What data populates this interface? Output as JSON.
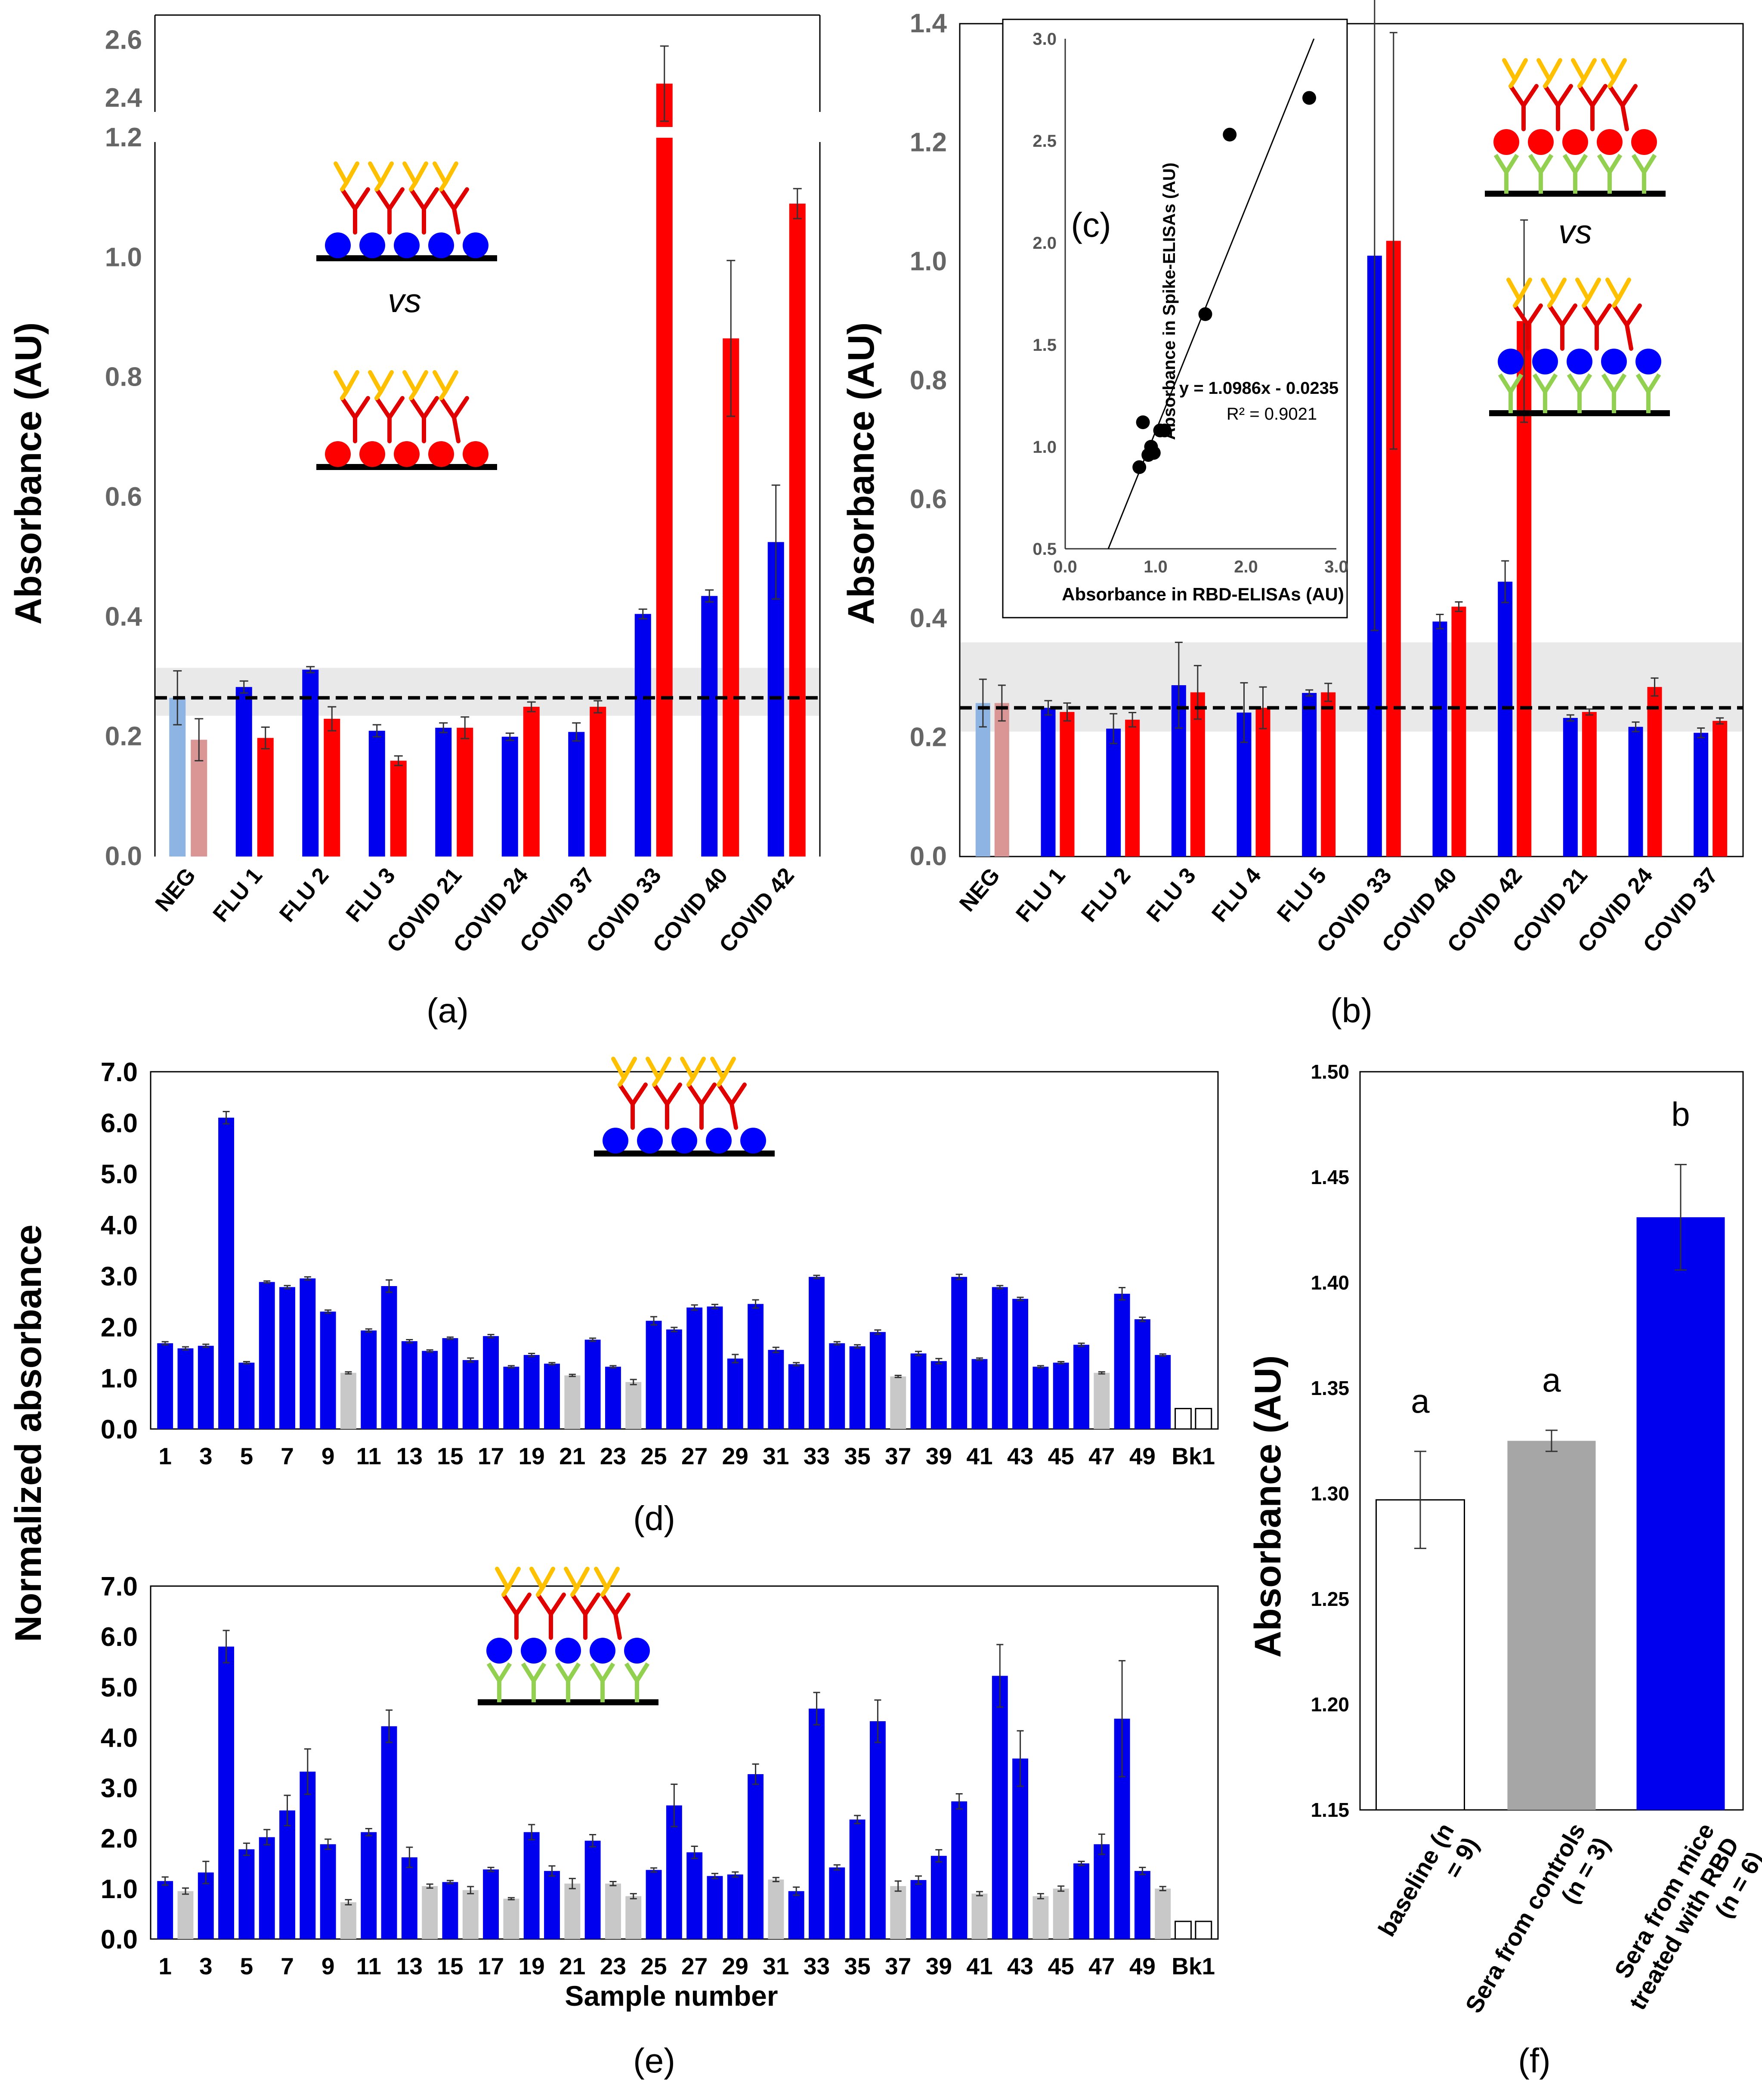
{
  "colors": {
    "blue": "#0000ee",
    "red": "#ff0000",
    "light_blue": "#8eb4e3",
    "light_red": "#d99694",
    "gray": "#c8c8c8",
    "dark_gray": "#a6a6a6",
    "antigen_blue": "#0000ff",
    "antigen_red": "#ff0000",
    "ab_red": "#e00000",
    "ab_yellow": "#ffc000",
    "ab_green": "#92d050"
  },
  "chart_data": [
    {
      "id": "a",
      "type": "bar",
      "panel_label": "(a)",
      "ylabel": "Absorbance (AU)",
      "vs_label": "vs",
      "categories": [
        "NEG",
        "FLU 1",
        "FLU 2",
        "FLU 3",
        "COVID 21",
        "COVID 24",
        "COVID 37",
        "COVID 33",
        "COVID 40",
        "COVID 42"
      ],
      "series": [
        {
          "name": "RBD",
          "values": [
            0.265,
            0.283,
            0.312,
            0.21,
            0.215,
            0.2,
            0.208,
            0.405,
            0.435,
            0.525
          ],
          "errors": [
            0.045,
            0.01,
            0.005,
            0.01,
            0.008,
            0.006,
            0.015,
            0.008,
            0.01,
            0.095
          ]
        },
        {
          "name": "Spike",
          "values": [
            0.195,
            0.198,
            0.23,
            0.16,
            0.215,
            0.25,
            0.25,
            2.45,
            0.865,
            1.09
          ],
          "errors": [
            0.035,
            0.018,
            0.02,
            0.008,
            0.018,
            0.008,
            0.01,
            0.13,
            0.13,
            0.025
          ]
        }
      ],
      "yticks_lower": [
        "0.0",
        "0.2",
        "0.4",
        "0.6",
        "0.8",
        "1.0",
        "1.2"
      ],
      "yticks_upper": [
        "2.4",
        "2.6"
      ],
      "ylim_lower": [
        0,
        1.2
      ],
      "ylim_upper": [
        2.3,
        2.65
      ],
      "cutoff": 0.265,
      "band": [
        0.235,
        0.315
      ]
    },
    {
      "id": "b",
      "type": "bar",
      "panel_label": "(b)",
      "ylabel": "Absorbance (AU)",
      "vs_label": "vs",
      "categories": [
        "NEG",
        "FLU 1",
        "FLU 2",
        "FLU 3",
        "FLU 4",
        "FLU 5",
        "COVID 33",
        "COVID 40",
        "COVID 42",
        "COVID 21",
        "COVID 24",
        "COVID 37"
      ],
      "series": [
        {
          "name": "RBD",
          "values": [
            0.258,
            0.25,
            0.215,
            0.288,
            0.242,
            0.275,
            1.01,
            0.395,
            0.462,
            0.233,
            0.218,
            0.208
          ],
          "errors": [
            0.04,
            0.012,
            0.025,
            0.072,
            0.05,
            0.005,
            0.63,
            0.012,
            0.035,
            0.005,
            0.008,
            0.008
          ]
        },
        {
          "name": "Spike",
          "values": [
            0.258,
            0.243,
            0.23,
            0.276,
            0.25,
            0.276,
            1.035,
            0.42,
            0.9,
            0.243,
            0.285,
            0.228
          ],
          "errors": [
            0.03,
            0.015,
            0.012,
            0.045,
            0.035,
            0.015,
            0.35,
            0.008,
            0.17,
            0.005,
            0.015,
            0.005
          ]
        }
      ],
      "yticks": [
        "0.0",
        "0.2",
        "0.4",
        "0.6",
        "0.8",
        "1.0",
        "1.2",
        "1.4"
      ],
      "ylim": [
        0,
        1.4
      ],
      "cutoff": 0.25,
      "band": [
        0.21,
        0.36
      ]
    },
    {
      "id": "c",
      "type": "scatter",
      "panel_label": "(c)",
      "xlabel": "Absorbance in RBD-ELISAs (AU)",
      "ylabel": "Absorbance in Spike-ELISAs (AU)",
      "equation": "y = 1.0986x - 0.0235",
      "r2": "R² = 0.9021",
      "xticks": [
        "0.0",
        "1.0",
        "2.0",
        "3.0"
      ],
      "yticks": [
        "0.5",
        "1.0",
        "1.5",
        "2.0",
        "2.5",
        "3.0"
      ],
      "xlim": [
        0,
        3
      ],
      "ylim": [
        0.5,
        3
      ],
      "x": [
        0.82,
        0.86,
        0.92,
        0.95,
        0.98,
        1.05,
        1.1,
        1.55,
        1.82,
        2.7
      ],
      "y": [
        0.9,
        1.12,
        0.96,
        1.0,
        0.97,
        1.08,
        1.08,
        1.65,
        2.53,
        2.71
      ]
    },
    {
      "id": "d",
      "type": "bar",
      "panel_label": "(d)",
      "ylabel": "Normalized absorbance",
      "yticks": [
        "0.0",
        "1.0",
        "2.0",
        "3.0",
        "4.0",
        "5.0",
        "6.0",
        "7.0"
      ],
      "ylim": [
        0,
        7
      ],
      "xticks": [
        "1",
        "3",
        "5",
        "7",
        "9",
        "11",
        "13",
        "15",
        "17",
        "19",
        "21",
        "23",
        "25",
        "27",
        "29",
        "31",
        "33",
        "35",
        "37",
        "39",
        "41",
        "43",
        "45",
        "47",
        "49",
        "Bk1"
      ],
      "values": [
        1.68,
        1.58,
        1.63,
        6.1,
        1.3,
        2.88,
        2.78,
        2.95,
        2.3,
        1.1,
        1.93,
        2.8,
        1.72,
        1.53,
        1.78,
        1.35,
        1.82,
        1.22,
        1.45,
        1.28,
        1.05,
        1.75,
        1.22,
        0.92,
        2.12,
        1.95,
        2.38,
        2.4,
        1.38,
        2.45,
        1.55,
        1.27,
        2.98,
        1.68,
        1.62,
        1.9,
        1.03,
        1.48,
        1.33,
        2.98,
        1.37,
        2.78,
        2.55,
        1.22,
        1.3,
        1.65,
        1.1,
        2.65,
        2.15,
        1.45
      ],
      "errors": [
        0.03,
        0.03,
        0.03,
        0.12,
        0.02,
        0.02,
        0.03,
        0.03,
        0.03,
        0.02,
        0.03,
        0.12,
        0.03,
        0.02,
        0.02,
        0.04,
        0.03,
        0.02,
        0.03,
        0.02,
        0.02,
        0.03,
        0.02,
        0.05,
        0.08,
        0.04,
        0.05,
        0.04,
        0.08,
        0.08,
        0.05,
        0.03,
        0.03,
        0.03,
        0.03,
        0.04,
        0.02,
        0.04,
        0.05,
        0.05,
        0.02,
        0.03,
        0.03,
        0.02,
        0.02,
        0.03,
        0.02,
        0.12,
        0.04,
        0.02
      ],
      "gray_indices": [
        9,
        20,
        23,
        36,
        46
      ],
      "blanks": [
        0.4,
        0.4
      ]
    },
    {
      "id": "e",
      "type": "bar",
      "panel_label": "(e)",
      "xlabel": "Sample number",
      "yticks": [
        "0.0",
        "1.0",
        "2.0",
        "3.0",
        "4.0",
        "5.0",
        "6.0",
        "7.0"
      ],
      "ylim": [
        0,
        7
      ],
      "xticks": [
        "1",
        "3",
        "5",
        "7",
        "9",
        "11",
        "13",
        "15",
        "17",
        "19",
        "21",
        "23",
        "25",
        "27",
        "29",
        "31",
        "33",
        "35",
        "37",
        "39",
        "41",
        "43",
        "45",
        "47",
        "49",
        "Bk1"
      ],
      "values": [
        1.15,
        0.95,
        1.32,
        5.8,
        1.78,
        2.02,
        2.55,
        3.32,
        1.88,
        0.73,
        2.12,
        4.22,
        1.62,
        1.05,
        1.13,
        0.97,
        1.38,
        0.8,
        2.12,
        1.35,
        1.1,
        1.95,
        1.1,
        0.85,
        1.37,
        2.65,
        1.72,
        1.25,
        1.28,
        3.27,
        1.18,
        0.95,
        4.57,
        1.42,
        2.37,
        4.32,
        1.05,
        1.17,
        1.65,
        2.73,
        0.9,
        5.22,
        3.58,
        0.85,
        1.0,
        1.5,
        1.88,
        4.37,
        1.35,
        1.0
      ],
      "errors": [
        0.08,
        0.06,
        0.22,
        0.32,
        0.12,
        0.15,
        0.3,
        0.45,
        0.1,
        0.05,
        0.07,
        0.32,
        0.2,
        0.04,
        0.03,
        0.07,
        0.04,
        0.02,
        0.15,
        0.1,
        0.1,
        0.12,
        0.04,
        0.05,
        0.04,
        0.42,
        0.12,
        0.05,
        0.05,
        0.2,
        0.04,
        0.08,
        0.32,
        0.05,
        0.08,
        0.42,
        0.1,
        0.08,
        0.12,
        0.15,
        0.04,
        0.62,
        0.55,
        0.05,
        0.05,
        0.04,
        0.2,
        1.15,
        0.07,
        0.04
      ],
      "gray_indices": [
        1,
        9,
        13,
        15,
        17,
        20,
        22,
        23,
        30,
        36,
        40,
        43,
        44,
        49
      ],
      "blanks": [
        0.35,
        0.35
      ]
    },
    {
      "id": "f",
      "type": "bar",
      "panel_label": "(f)",
      "ylabel": "Absorbance (AU)",
      "categories": [
        "baseline (n = 9)",
        "Sera from controls (n = 3)",
        "Sera from mice treated with RBD (n = 6)"
      ],
      "values": [
        1.297,
        1.325,
        1.431
      ],
      "errors": [
        0.023,
        0.005,
        0.025
      ],
      "group_labels": [
        "a",
        "a",
        "b"
      ],
      "yticks": [
        "1.15",
        "1.20",
        "1.25",
        "1.30",
        "1.35",
        "1.40",
        "1.45",
        "1.50"
      ],
      "ylim": [
        1.15,
        1.5
      ]
    }
  ]
}
